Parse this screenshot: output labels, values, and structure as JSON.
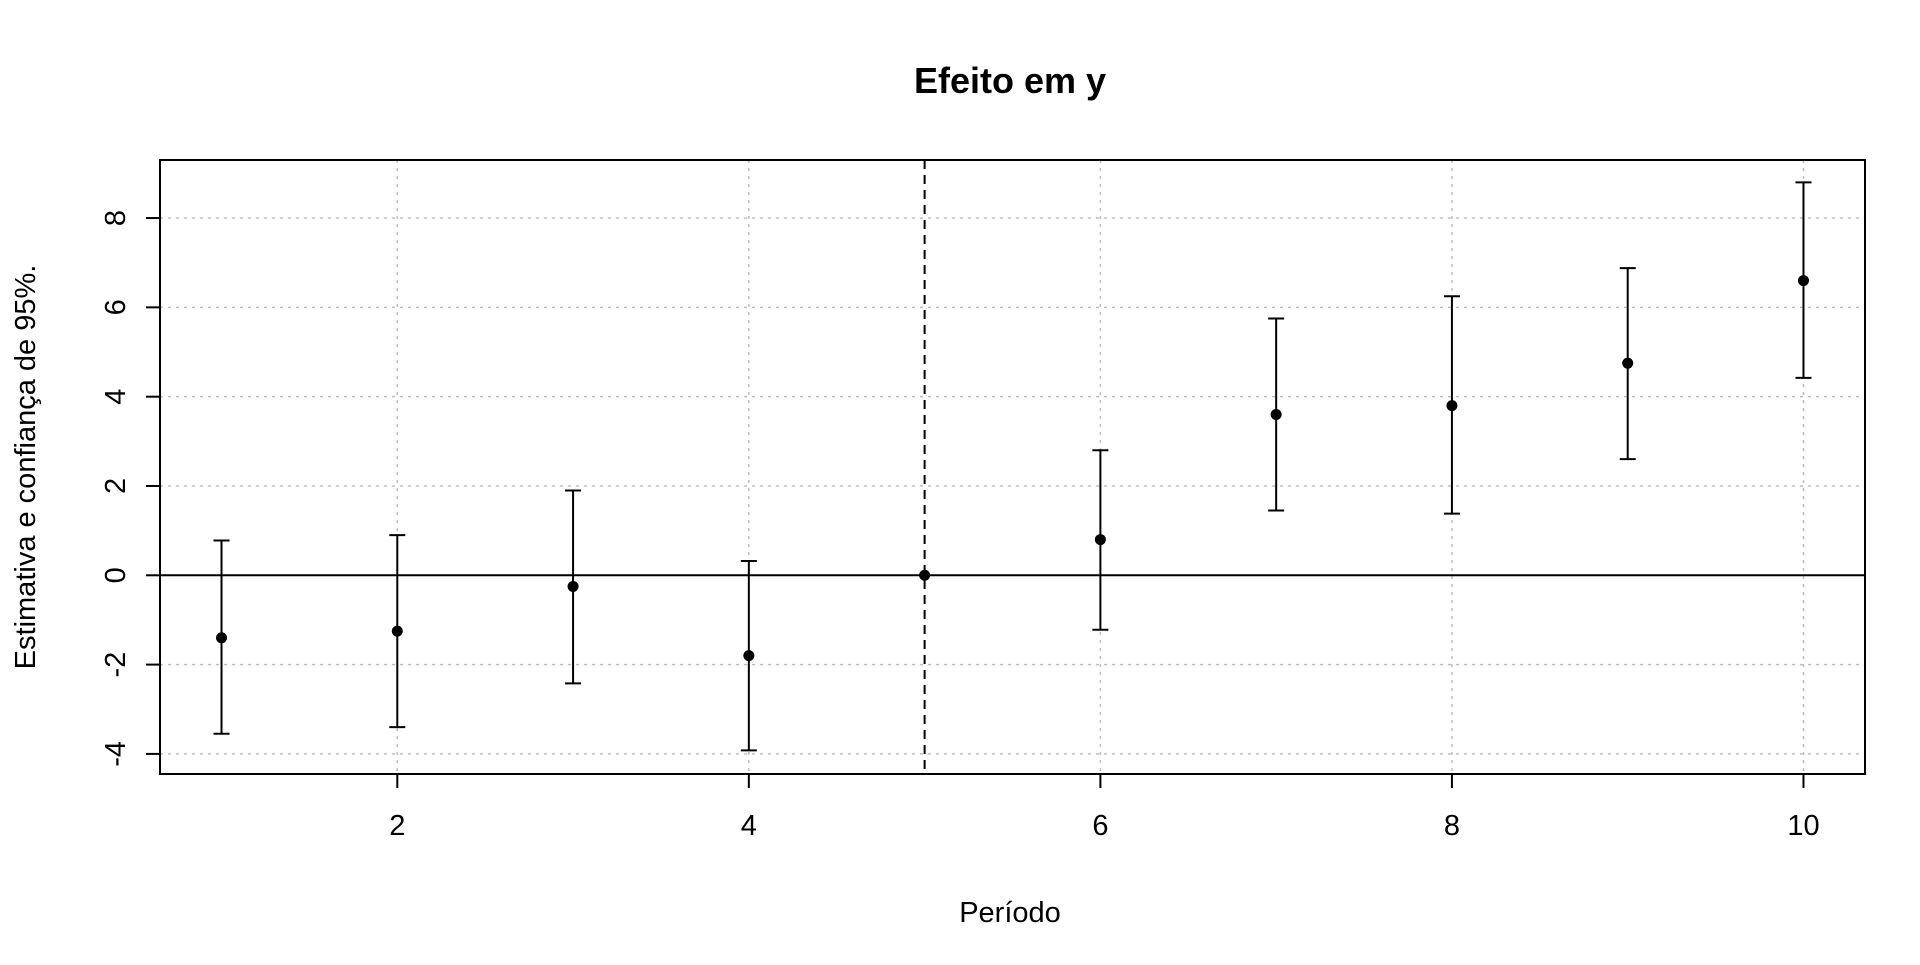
{
  "chart_data": {
    "type": "scatter",
    "title": "Efeito em y",
    "xlabel": "Período",
    "ylabel": "Estimativa e confiança de 95%.",
    "xlim": [
      0.65,
      10.35
    ],
    "ylim": [
      -4.45,
      9.3
    ],
    "x_ticks": [
      2,
      4,
      6,
      8,
      10
    ],
    "y_ticks": [
      -4,
      -2,
      0,
      2,
      4,
      6,
      8
    ],
    "grid": true,
    "grid_style": "dotted",
    "reference_lines": [
      {
        "orientation": "horizontal",
        "value": 0,
        "style": "solid"
      },
      {
        "orientation": "vertical",
        "value": 5,
        "style": "dashed"
      }
    ],
    "series": [
      {
        "x": [
          1,
          2,
          3,
          4,
          5,
          6,
          7,
          8,
          9,
          10
        ],
        "estimate": [
          -1.4,
          -1.25,
          -0.25,
          -1.8,
          0.0,
          0.8,
          3.6,
          3.8,
          4.75,
          6.6
        ],
        "ci_low": [
          -3.55,
          -3.4,
          -2.42,
          -3.92,
          0.0,
          -1.22,
          1.45,
          1.38,
          2.6,
          4.42
        ],
        "ci_high": [
          0.78,
          0.9,
          1.9,
          0.32,
          0.0,
          2.8,
          5.75,
          6.25,
          6.88,
          8.8
        ]
      }
    ],
    "colors": {
      "points": "#000000",
      "grid": "#bebebe",
      "frame": "#000000"
    }
  }
}
